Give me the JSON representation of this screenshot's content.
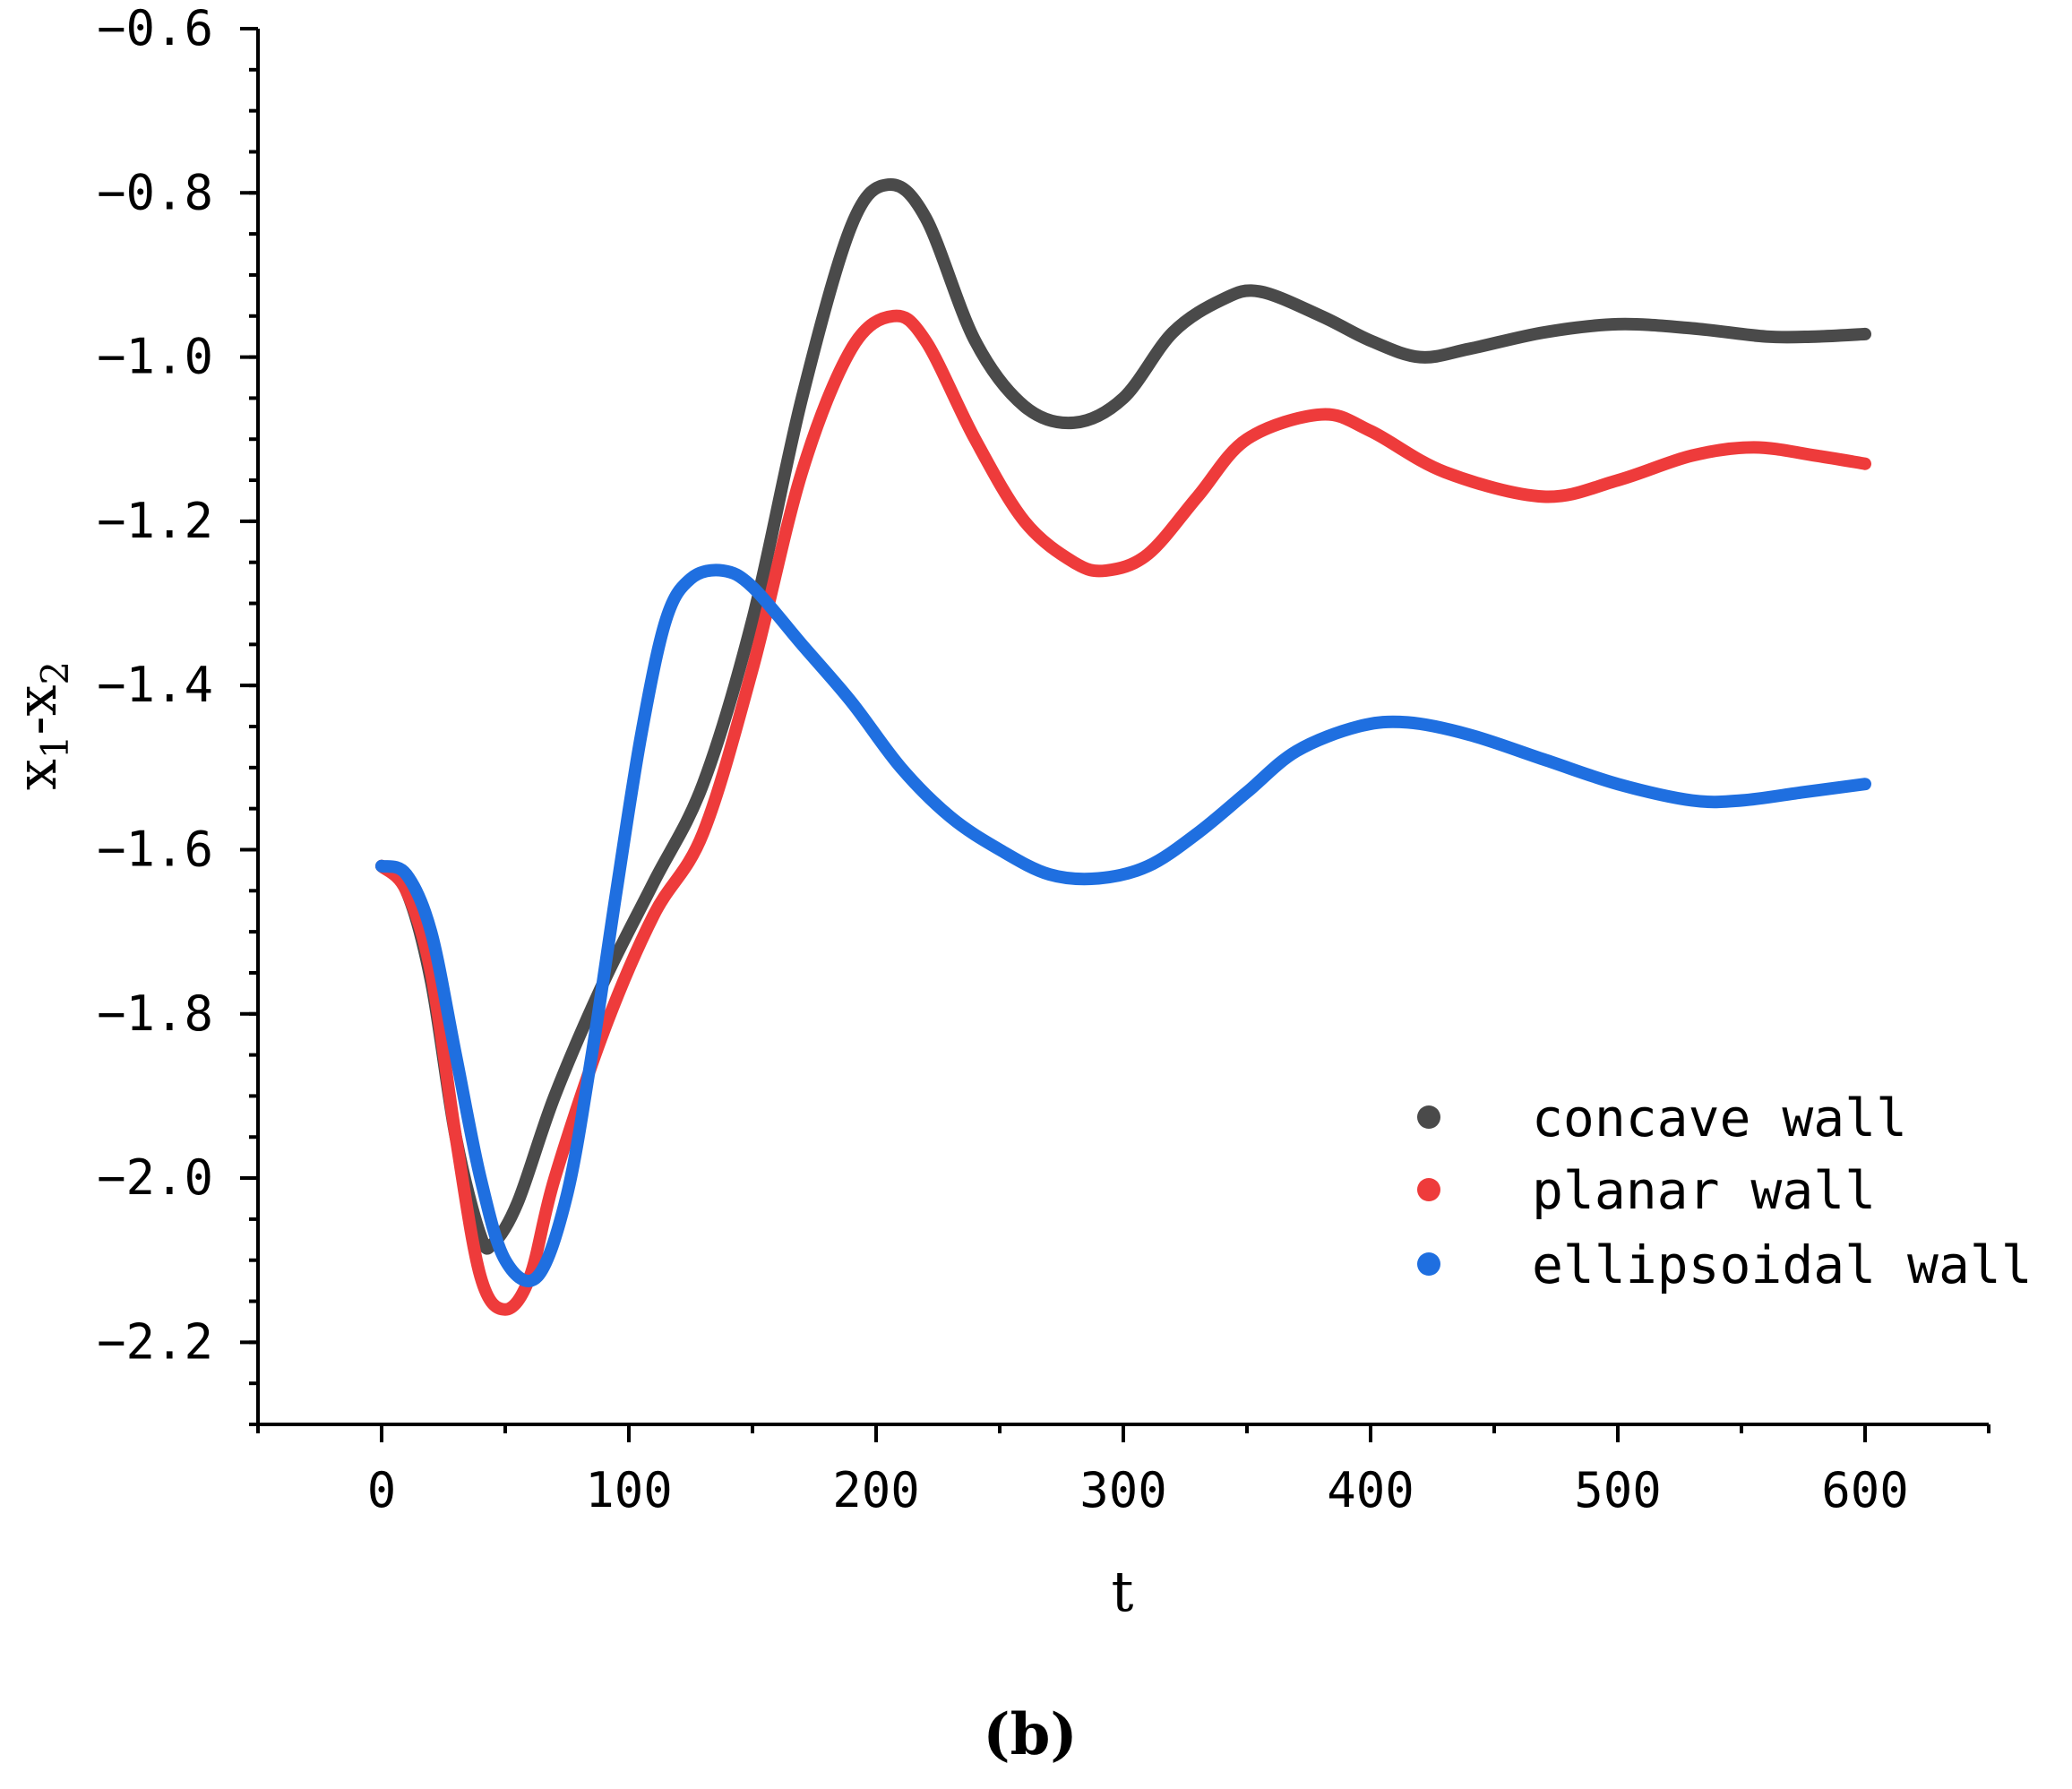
{
  "chart_data": {
    "type": "line",
    "title": "",
    "panel_label": "(b)",
    "xlabel": "t",
    "ylabel": {
      "base": "x",
      "sub1": "1",
      "mid": "-x",
      "sub2": "2"
    },
    "xlim": [
      -50,
      650
    ],
    "ylim": [
      -2.3,
      -0.6
    ],
    "xticks": [
      0,
      100,
      200,
      300,
      400,
      500,
      600
    ],
    "xtick_labels": [
      "0",
      "100",
      "200",
      "300",
      "400",
      "500",
      "600"
    ],
    "yticks": [
      -2.2,
      -2.0,
      -1.8,
      -1.6,
      -1.4,
      -1.2,
      -1.0,
      -0.8,
      -0.6
    ],
    "ytick_labels": [
      "−2.2",
      "−2.0",
      "−1.8",
      "−1.6",
      "−1.4",
      "−1.2",
      "−1.0",
      "−0.8",
      "−0.6"
    ],
    "grid": false,
    "legend_position": "lower-right",
    "series": [
      {
        "name": "concave wall",
        "color": "#4a4a4a",
        "x": [
          0,
          10,
          20,
          30,
          40,
          45,
          55,
          70,
          90,
          110,
          130,
          150,
          170,
          190,
          205,
          220,
          240,
          260,
          280,
          300,
          320,
          340,
          355,
          380,
          400,
          420,
          440,
          470,
          500,
          530,
          560,
          580,
          600
        ],
        "y": [
          -1.62,
          -1.65,
          -1.76,
          -1.95,
          -2.07,
          -2.08,
          -2.03,
          -1.9,
          -1.76,
          -1.64,
          -1.52,
          -1.32,
          -1.05,
          -0.84,
          -0.79,
          -0.83,
          -0.98,
          -1.06,
          -1.08,
          -1.05,
          -0.97,
          -0.93,
          -0.92,
          -0.95,
          -0.98,
          -1.0,
          -0.99,
          -0.97,
          -0.96,
          -0.965,
          -0.975,
          -0.975,
          -0.972
        ]
      },
      {
        "name": "planar wall",
        "color": "#ee3b3b",
        "x": [
          0,
          10,
          20,
          30,
          40,
          50,
          60,
          70,
          90,
          110,
          130,
          150,
          170,
          190,
          207,
          220,
          240,
          260,
          280,
          293,
          310,
          330,
          350,
          380,
          400,
          430,
          470,
          500,
          530,
          555,
          580,
          600
        ],
        "y": [
          -1.62,
          -1.65,
          -1.75,
          -1.95,
          -2.12,
          -2.16,
          -2.12,
          -2.0,
          -1.82,
          -1.68,
          -1.58,
          -1.38,
          -1.14,
          -0.99,
          -0.95,
          -0.98,
          -1.1,
          -1.2,
          -1.25,
          -1.26,
          -1.24,
          -1.17,
          -1.1,
          -1.07,
          -1.09,
          -1.14,
          -1.17,
          -1.15,
          -1.12,
          -1.11,
          -1.12,
          -1.13
        ]
      },
      {
        "name": "ellipsoidal wall",
        "color": "#1f6fe0",
        "x": [
          0,
          10,
          20,
          30,
          40,
          50,
          63,
          75,
          85,
          95,
          105,
          115,
          125,
          138,
          150,
          170,
          190,
          210,
          230,
          250,
          270,
          290,
          310,
          330,
          350,
          370,
          395,
          415,
          440,
          470,
          500,
          530,
          550,
          575,
          600
        ],
        "y": [
          -1.62,
          -1.63,
          -1.7,
          -1.85,
          -2.0,
          -2.1,
          -2.12,
          -2.02,
          -1.85,
          -1.65,
          -1.46,
          -1.32,
          -1.27,
          -1.26,
          -1.28,
          -1.35,
          -1.42,
          -1.5,
          -1.56,
          -1.6,
          -1.63,
          -1.635,
          -1.62,
          -1.58,
          -1.53,
          -1.48,
          -1.45,
          -1.445,
          -1.46,
          -1.49,
          -1.52,
          -1.54,
          -1.54,
          -1.53,
          -1.52
        ]
      }
    ]
  }
}
